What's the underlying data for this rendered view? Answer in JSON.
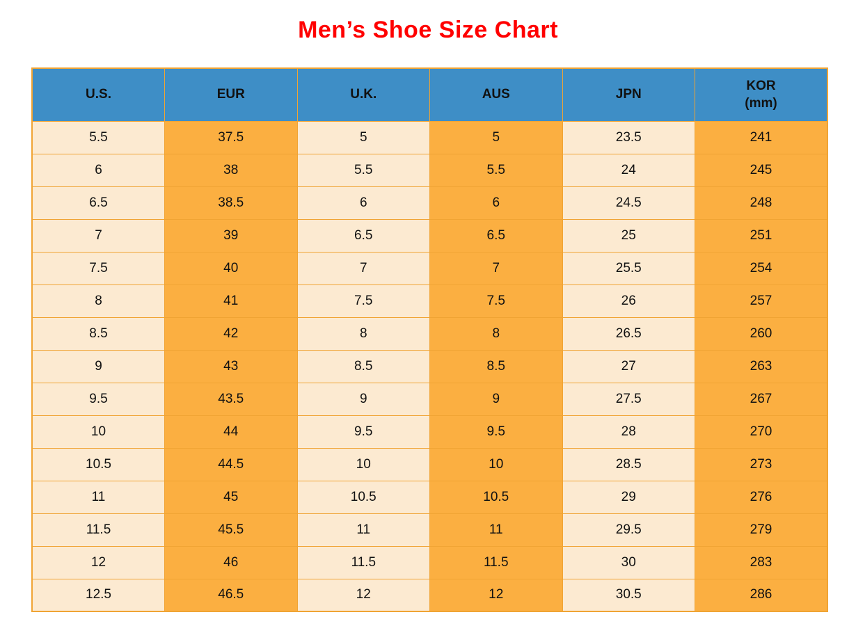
{
  "title": "Men’s Shoe Size Chart",
  "colors": {
    "title_red": "#ff0000",
    "header_blue": "#3e8ec6",
    "cell_cream": "#fcead1",
    "cell_orange": "#fbaf41",
    "grid_orange": "#f0a434",
    "text_dark": "#111111"
  },
  "table": {
    "headers": [
      {
        "label": "U.S."
      },
      {
        "label": "EUR"
      },
      {
        "label": "U.K."
      },
      {
        "label": "AUS"
      },
      {
        "label": "JPN"
      },
      {
        "label": "KOR",
        "sub": "(mm)"
      }
    ]
  },
  "chart_data": {
    "type": "table",
    "title": "Men’s Shoe Size Chart",
    "columns": [
      "U.S.",
      "EUR",
      "U.K.",
      "AUS",
      "JPN",
      "KOR (mm)"
    ],
    "rows": [
      [
        "5.5",
        "37.5",
        "5",
        "5",
        "23.5",
        "241"
      ],
      [
        "6",
        "38",
        "5.5",
        "5.5",
        "24",
        "245"
      ],
      [
        "6.5",
        "38.5",
        "6",
        "6",
        "24.5",
        "248"
      ],
      [
        "7",
        "39",
        "6.5",
        "6.5",
        "25",
        "251"
      ],
      [
        "7.5",
        "40",
        "7",
        "7",
        "25.5",
        "254"
      ],
      [
        "8",
        "41",
        "7.5",
        "7.5",
        "26",
        "257"
      ],
      [
        "8.5",
        "42",
        "8",
        "8",
        "26.5",
        "260"
      ],
      [
        "9",
        "43",
        "8.5",
        "8.5",
        "27",
        "263"
      ],
      [
        "9.5",
        "43.5",
        "9",
        "9",
        "27.5",
        "267"
      ],
      [
        "10",
        "44",
        "9.5",
        "9.5",
        "28",
        "270"
      ],
      [
        "10.5",
        "44.5",
        "10",
        "10",
        "28.5",
        "273"
      ],
      [
        "11",
        "45",
        "10.5",
        "10.5",
        "29",
        "276"
      ],
      [
        "11.5",
        "45.5",
        "11",
        "11",
        "29.5",
        "279"
      ],
      [
        "12",
        "46",
        "11.5",
        "11.5",
        "30",
        "283"
      ],
      [
        "12.5",
        "46.5",
        "12",
        "12",
        "30.5",
        "286"
      ]
    ],
    "layout": {
      "column_fill_pattern": [
        "cream",
        "orange",
        "cream",
        "orange",
        "cream",
        "orange"
      ],
      "header_fill": "blue",
      "grid": true
    }
  }
}
